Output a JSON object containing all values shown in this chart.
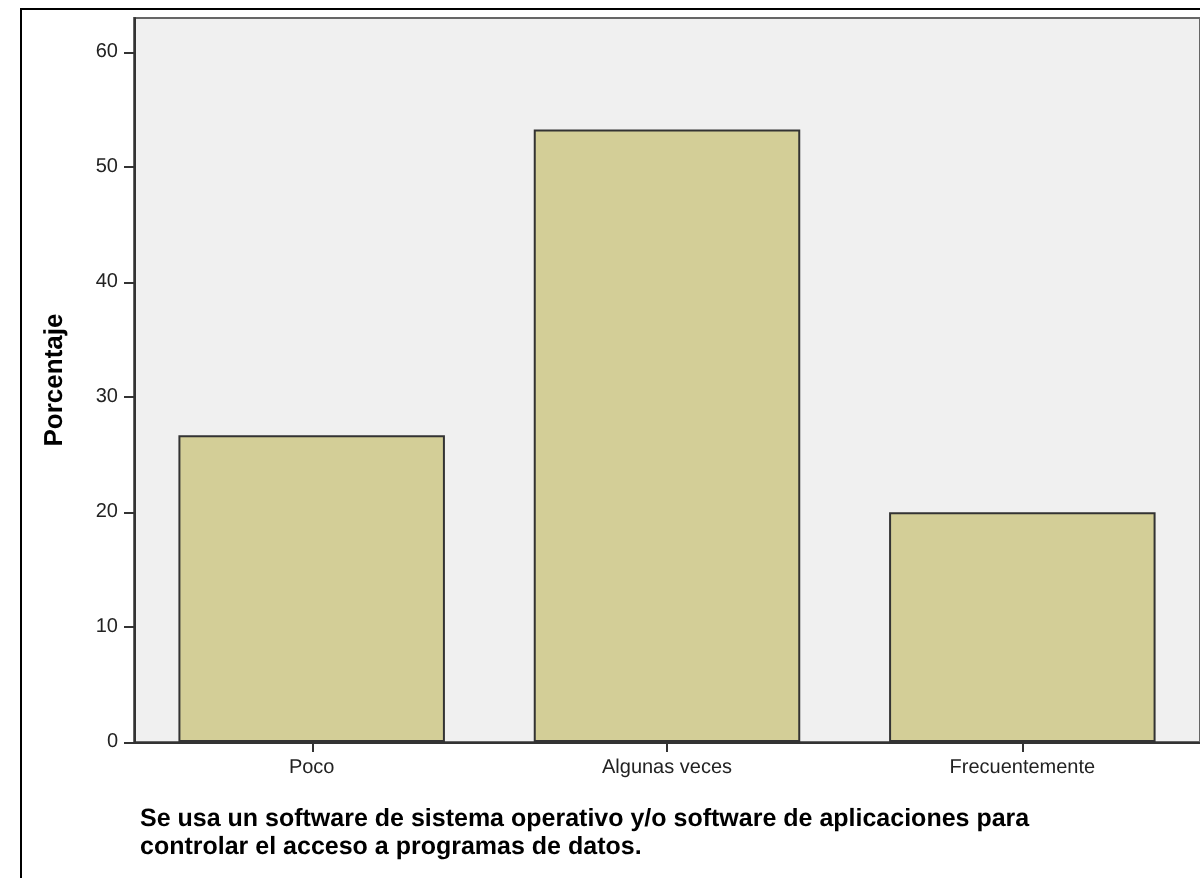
{
  "chart_data": {
    "type": "bar",
    "categories": [
      "Poco",
      "Algunas veces",
      "Frecuentemente"
    ],
    "values": [
      26.7,
      53.3,
      20
    ],
    "color": "#d3ce97",
    "xlabel": "Se usa un software de sistema operativo y/o software de aplicaciones para controlar el acceso a programas de datos.",
    "ylabel": "Porcentaje",
    "ylim": [
      0,
      63
    ],
    "yticks": [
      0,
      10,
      20,
      30,
      40,
      50,
      60
    ],
    "grid": false
  }
}
